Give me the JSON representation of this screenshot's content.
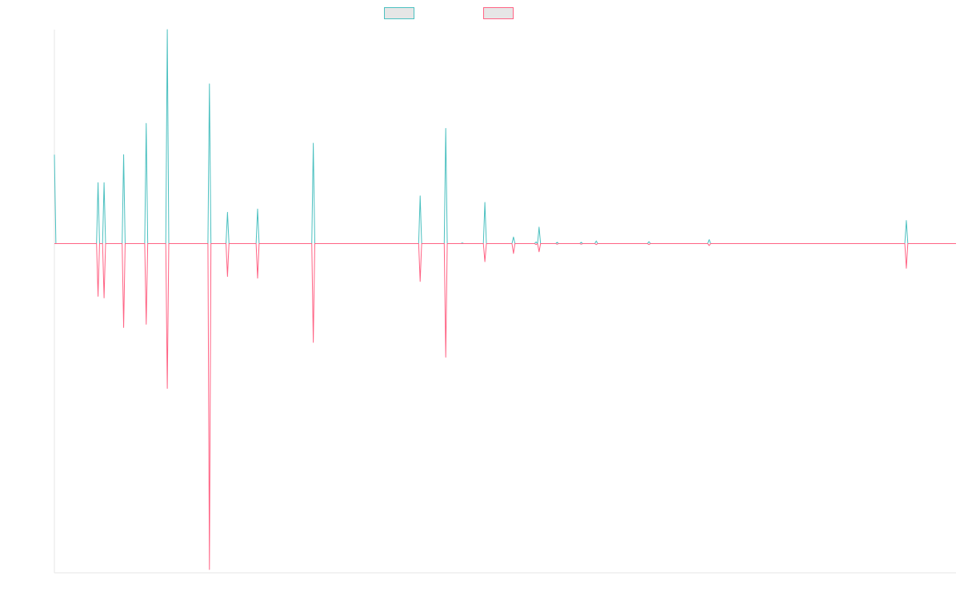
{
  "chart_data": {
    "type": "line",
    "title": "",
    "xlabel": "",
    "ylabel": "",
    "legend_position": "top-center",
    "grid": false,
    "ylim": [
      -100,
      65
    ],
    "x": [
      1,
      2,
      3,
      4,
      5,
      6,
      7,
      8,
      9,
      10,
      11,
      12,
      13,
      14,
      15,
      16,
      17,
      18,
      19,
      20,
      21,
      22,
      23,
      24,
      25,
      26,
      27,
      28,
      29,
      30,
      31,
      32,
      33,
      34,
      35,
      36,
      37,
      38,
      39,
      40,
      41,
      42,
      43,
      44,
      45,
      46,
      47,
      48,
      49,
      50,
      51,
      52,
      53,
      54,
      55,
      56,
      57,
      58,
      59,
      60,
      61,
      62,
      63,
      64,
      65,
      66,
      67,
      68,
      69,
      70,
      71,
      72,
      73,
      74,
      75,
      76,
      77,
      78,
      79,
      80,
      81,
      82,
      83,
      84,
      85,
      86,
      87,
      88,
      89,
      90,
      91,
      92,
      93,
      94,
      95,
      96,
      97,
      98,
      99,
      100,
      101,
      102,
      103,
      104,
      105,
      106,
      107,
      108,
      109,
      110,
      111,
      112,
      113,
      114,
      115,
      116,
      117,
      118,
      119,
      120,
      121,
      122,
      123,
      124,
      125,
      126,
      127,
      128,
      129,
      130,
      131,
      132,
      133,
      134,
      135,
      136,
      137,
      138,
      139,
      140,
      141,
      142,
      143,
      144,
      145,
      146,
      147,
      148,
      149,
      150,
      151,
      152,
      153,
      154,
      155,
      156,
      157,
      158,
      159,
      160,
      161,
      162,
      163,
      164,
      165,
      166,
      167,
      168,
      169,
      170,
      171,
      172,
      173,
      174,
      175,
      176,
      177,
      178,
      179,
      180,
      181,
      182,
      183,
      184,
      185,
      186,
      187,
      188,
      189,
      190,
      191,
      192,
      193,
      194,
      195,
      196,
      197,
      198,
      199,
      200,
      201,
      202,
      203,
      204,
      205,
      206,
      207,
      208,
      209,
      210,
      211,
      212,
      213,
      214,
      215,
      216,
      217,
      218,
      219,
      220,
      221,
      222,
      223,
      224,
      225,
      226,
      227,
      228,
      229,
      230,
      231,
      232,
      233,
      234,
      235,
      236,
      237,
      238,
      239,
      240,
      241,
      242,
      243,
      244,
      245,
      246,
      247,
      248,
      249,
      250,
      251,
      252,
      253,
      254,
      255,
      256,
      257,
      258,
      259,
      260,
      261,
      262,
      263,
      264,
      265,
      266,
      267,
      268,
      269,
      270,
      271,
      272,
      273,
      274,
      275,
      276,
      277,
      278,
      279,
      280,
      281,
      282,
      283,
      284,
      285,
      286,
      287,
      288,
      289,
      290,
      291,
      292,
      293,
      294,
      295,
      296,
      297,
      298,
      299,
      300,
      301,
      302,
      303,
      304,
      305,
      306,
      307,
      308,
      309,
      310,
      311,
      312,
      313,
      314,
      315,
      316,
      317,
      318,
      319,
      320,
      321,
      322,
      323,
      324,
      325,
      326,
      327,
      328,
      329,
      330,
      331,
      332,
      333,
      334,
      335,
      336,
      337,
      338,
      339,
      340,
      341,
      342,
      343,
      344,
      345,
      346,
      347,
      348,
      349,
      350,
      351,
      352,
      353,
      354,
      355,
      356,
      357,
      358,
      359,
      360,
      361,
      362,
      363,
      364,
      365,
      366,
      367,
      368,
      369,
      370,
      371,
      372,
      373,
      374,
      375,
      376,
      377,
      378,
      379,
      380,
      381,
      382,
      383,
      384,
      385,
      386,
      387,
      388,
      389,
      390,
      391,
      392,
      393,
      394,
      395,
      396,
      397,
      398,
      399,
      400,
      401,
      402,
      403,
      404,
      405,
      406,
      407,
      408,
      409,
      410,
      411,
      412,
      413,
      414,
      415,
      416,
      417,
      418,
      419,
      420,
      421,
      422,
      423,
      424,
      425,
      426,
      427,
      428,
      429,
      430,
      431,
      432,
      433,
      434,
      435,
      436,
      437,
      438,
      439,
      440,
      441,
      442,
      443,
      444,
      445,
      446,
      447,
      448,
      449,
      450,
      451,
      452,
      453,
      454,
      455,
      456,
      457,
      458,
      459,
      460,
      461,
      462,
      463,
      464,
      465,
      466,
      467,
      468,
      469,
      470,
      471,
      472,
      473,
      474,
      475,
      476,
      477,
      478,
      479,
      480,
      481,
      482,
      483,
      484,
      485,
      486,
      487,
      488,
      489,
      490,
      491,
      492,
      493,
      494,
      495,
      496,
      497,
      498,
      499,
      500,
      501,
      502,
      503,
      504,
      505,
      506,
      507,
      508,
      509,
      510,
      511,
      512,
      513,
      514,
      515,
      516,
      517,
      518,
      519,
      520,
      521,
      522,
      523,
      524,
      525,
      526,
      527,
      528,
      529,
      530,
      531,
      532,
      533,
      534,
      535,
      536,
      537,
      538,
      539,
      540,
      541,
      542,
      543,
      544,
      545,
      546,
      547,
      548,
      549,
      550,
      551,
      552,
      553,
      554,
      555,
      556,
      557,
      558,
      559,
      560,
      561,
      562,
      563,
      564,
      565,
      566,
      567,
      568,
      569,
      570,
      571,
      572,
      573,
      574,
      575,
      576,
      577,
      578,
      579,
      580,
      581,
      582,
      583,
      584,
      585,
      586,
      587,
      588,
      589,
      590,
      591,
      592,
      593,
      594,
      595,
      596,
      597,
      598,
      599,
      600
    ],
    "x_range": [
      1,
      600
    ],
    "spikes": [
      {
        "x": 1,
        "pos": 27,
        "neg": 0
      },
      {
        "x": 30,
        "pos": 18.5,
        "neg": -16
      },
      {
        "x": 34,
        "pos": 18.5,
        "neg": -16.5
      },
      {
        "x": 47,
        "pos": 27,
        "neg": -25.5
      },
      {
        "x": 62,
        "pos": 36.5,
        "neg": -24.5
      },
      {
        "x": 76,
        "pos": 65,
        "neg": -44
      },
      {
        "x": 104,
        "pos": 48.5,
        "neg": -99
      },
      {
        "x": 116,
        "pos": 9.5,
        "neg": -10
      },
      {
        "x": 136,
        "pos": 10.5,
        "neg": -10.5
      },
      {
        "x": 173,
        "pos": 30.5,
        "neg": -30
      },
      {
        "x": 244,
        "pos": 14.5,
        "neg": -11.5
      },
      {
        "x": 261,
        "pos": 35,
        "neg": -34.5
      },
      {
        "x": 272,
        "pos": 0.2,
        "neg": 0
      },
      {
        "x": 287,
        "pos": 12.5,
        "neg": -5.5
      },
      {
        "x": 306,
        "pos": 2,
        "neg": -3
      },
      {
        "x": 321,
        "pos": 0.5,
        "neg": -0.3
      },
      {
        "x": 323,
        "pos": 5,
        "neg": -2.5
      },
      {
        "x": 335,
        "pos": 0.4,
        "neg": -0.2
      },
      {
        "x": 351,
        "pos": 0.4,
        "neg": -0.2
      },
      {
        "x": 361,
        "pos": 0.8,
        "neg": -0.3
      },
      {
        "x": 396,
        "pos": 0.6,
        "neg": -0.3
      },
      {
        "x": 436,
        "pos": 1.2,
        "neg": -0.6
      },
      {
        "x": 567,
        "pos": 7,
        "neg": -7.5
      }
    ],
    "series": [
      {
        "color": "#4bc0c0",
        "sign": "pos"
      },
      {
        "color": "#ff6384",
        "sign": "neg"
      }
    ]
  }
}
